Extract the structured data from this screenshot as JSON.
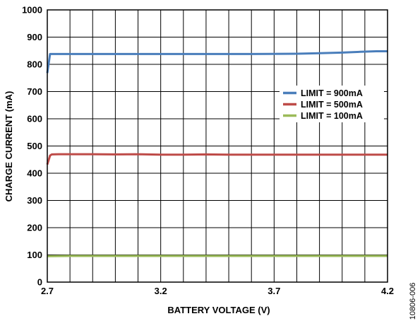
{
  "chart_data": {
    "type": "line",
    "title": "",
    "xlabel": "BATTERY VOLTAGE (V)",
    "ylabel": "CHARGE CURRENT (mA)",
    "xlim": [
      2.7,
      4.2
    ],
    "ylim": [
      0,
      1000
    ],
    "x_ticks": [
      2.7,
      3.2,
      3.7,
      4.2
    ],
    "x_tick_labels": [
      "2.7",
      "3.2",
      "3.7",
      "4.2"
    ],
    "y_ticks": [
      0,
      100,
      200,
      300,
      400,
      500,
      600,
      700,
      800,
      900,
      1000
    ],
    "y_tick_labels": [
      "0",
      "100",
      "200",
      "300",
      "400",
      "500",
      "600",
      "700",
      "800",
      "900",
      "1000"
    ],
    "grid": true,
    "legend_position": "right",
    "figure_id": "10806-006",
    "series": [
      {
        "name": "LIMIT = 900mA",
        "color": "#4a7ebb",
        "x": [
          2.7,
          2.712,
          2.72,
          2.75,
          3.0,
          3.3,
          3.6,
          3.8,
          3.9,
          4.0,
          4.08,
          4.15,
          4.2
        ],
        "y": [
          768,
          838,
          838,
          838,
          838,
          838,
          838,
          839,
          841,
          843,
          846,
          848,
          848
        ]
      },
      {
        "name": "LIMIT = 500mA",
        "color": "#be4b48",
        "x": [
          2.7,
          2.712,
          2.72,
          2.75,
          2.9,
          3.0,
          3.1,
          3.2,
          3.3,
          3.4,
          3.5,
          3.6,
          3.7,
          3.8,
          3.9,
          4.0,
          4.1,
          4.2
        ],
        "y": [
          432,
          465,
          469,
          470,
          470,
          469,
          470,
          468,
          468,
          469,
          468,
          468,
          468,
          468,
          468,
          468,
          468,
          468
        ]
      },
      {
        "name": "LIMIT = 100mA",
        "color": "#9bbb59",
        "x": [
          2.7,
          2.8,
          3.0,
          3.2,
          3.4,
          3.6,
          3.8,
          4.0,
          4.2
        ],
        "y": [
          95,
          96,
          96,
          96,
          96,
          96,
          96,
          96,
          96
        ]
      }
    ]
  }
}
